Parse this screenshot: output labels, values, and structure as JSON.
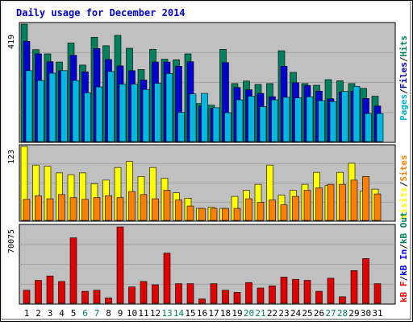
{
  "chart_data": [
    {
      "type": "bar",
      "title": "Daily usage for December 2014",
      "panel": "top",
      "ylabel_max": "419",
      "legend": [
        {
          "label": "Pages",
          "color": "#00b0d0"
        },
        {
          "label": "Files",
          "color": "#0000b0"
        },
        {
          "label": "Hits",
          "color": "#00805c"
        }
      ],
      "categories": [
        "1",
        "2",
        "3",
        "4",
        "5",
        "6",
        "7",
        "8",
        "9",
        "10",
        "11",
        "12",
        "13",
        "14",
        "15",
        "16",
        "17",
        "18",
        "19",
        "20",
        "21",
        "22",
        "23",
        "24",
        "25",
        "26",
        "27",
        "28",
        "29",
        "30",
        "31"
      ],
      "weekend_days": [
        "6",
        "7",
        "13",
        "14",
        "20",
        "21",
        "27",
        "28"
      ],
      "ylim": [
        0,
        419
      ],
      "series": [
        {
          "name": "Hits",
          "values": [
            419,
            328,
            313,
            284,
            352,
            273,
            372,
            342,
            379,
            333,
            257,
            329,
            294,
            292,
            313,
            136,
            130,
            329,
            207,
            216,
            204,
            207,
            324,
            247,
            207,
            201,
            221,
            217,
            207,
            190,
            162
          ]
        },
        {
          "name": "Files",
          "values": [
            358,
            313,
            285,
            253,
            308,
            249,
            332,
            293,
            270,
            253,
            220,
            284,
            284,
            269,
            285,
            127,
            119,
            282,
            193,
            185,
            172,
            160,
            269,
            210,
            200,
            180,
            153,
            177,
            180,
            154,
            127
          ]
        },
        {
          "name": "Pages",
          "values": [
            253,
            218,
            244,
            253,
            218,
            174,
            195,
            250,
            205,
            205,
            186,
            208,
            243,
            104,
            170,
            172,
            121,
            103,
            149,
            162,
            125,
            149,
            158,
            156,
            160,
            146,
            143,
            179,
            197,
            100,
            100
          ]
        }
      ]
    },
    {
      "type": "bar",
      "panel": "middle",
      "ylabel_max": "123",
      "legend": [
        {
          "label": "Visits",
          "color": "#ffff00"
        },
        {
          "label": "Sites",
          "color": "#ff8000"
        }
      ],
      "ylim": [
        0,
        123
      ],
      "series": [
        {
          "name": "Visits",
          "values": [
            123,
            92,
            90,
            79,
            76,
            79,
            61,
            67,
            88,
            98,
            73,
            88,
            70,
            46,
            37,
            20,
            22,
            20,
            40,
            50,
            60,
            92,
            42,
            50,
            60,
            80,
            58,
            80,
            95,
            49,
            52
          ]
        },
        {
          "name": "Sites",
          "values": [
            35,
            41,
            36,
            43,
            38,
            35,
            38,
            41,
            38,
            48,
            43,
            36,
            50,
            34,
            24,
            20,
            20,
            20,
            20,
            36,
            30,
            34,
            26,
            40,
            50,
            54,
            60,
            60,
            67,
            73,
            44
          ]
        }
      ]
    },
    {
      "type": "bar",
      "panel": "bottom",
      "ylabel_max": "70075",
      "legend": [
        {
          "label": "kB F",
          "color": "#ff0000"
        },
        {
          "label": "kB In",
          "color": "#0000ff"
        },
        {
          "label": "kB Out",
          "color": "#00805c"
        }
      ],
      "ylim": [
        0,
        70075
      ],
      "series": [
        {
          "name": "kB F",
          "values": [
            12000,
            21000,
            25000,
            20000,
            60000,
            11000,
            12000,
            5000,
            70000,
            15000,
            20000,
            17000,
            46000,
            18000,
            18000,
            4000,
            18000,
            12000,
            10000,
            19000,
            14000,
            16000,
            24000,
            22000,
            21000,
            11000,
            23000,
            6000,
            30000,
            41000,
            18000
          ]
        }
      ]
    }
  ]
}
